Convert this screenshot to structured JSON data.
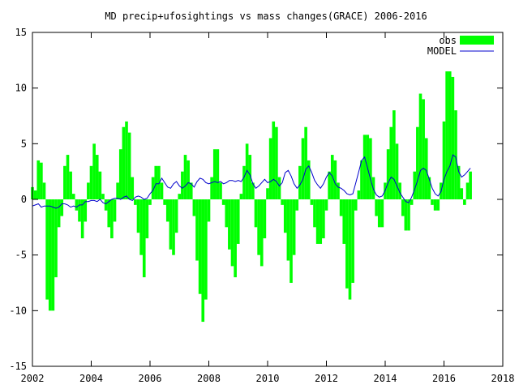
{
  "chart_data": {
    "type": "bar",
    "title": "MD precip+ufosightings vs mass changes(GRACE) 2006-2016",
    "xlabel": "",
    "ylabel": "",
    "xlim": [
      2002,
      2018
    ],
    "ylim": [
      -15,
      15
    ],
    "x_ticks": [
      "2002",
      "2004",
      "2006",
      "2008",
      "2010",
      "2012",
      "2014",
      "2016",
      "2018"
    ],
    "y_ticks": [
      "-15",
      "-10",
      "-5",
      "0",
      "5",
      "10",
      "15"
    ],
    "grid": false,
    "legend_position": "top-right",
    "x": [
      2002.0,
      2002.1,
      2002.2,
      2002.3,
      2002.4,
      2002.5,
      2002.6,
      2002.7,
      2002.8,
      2002.9,
      2003.0,
      2003.1,
      2003.2,
      2003.3,
      2003.4,
      2003.5,
      2003.6,
      2003.7,
      2003.8,
      2003.9,
      2004.0,
      2004.1,
      2004.2,
      2004.3,
      2004.4,
      2004.5,
      2004.6,
      2004.7,
      2004.8,
      2004.9,
      2005.0,
      2005.1,
      2005.2,
      2005.3,
      2005.4,
      2005.5,
      2005.6,
      2005.7,
      2005.8,
      2005.9,
      2006.0,
      2006.1,
      2006.2,
      2006.3,
      2006.4,
      2006.5,
      2006.6,
      2006.7,
      2006.8,
      2006.9,
      2007.0,
      2007.1,
      2007.2,
      2007.3,
      2007.4,
      2007.5,
      2007.6,
      2007.7,
      2007.8,
      2007.9,
      2008.0,
      2008.1,
      2008.2,
      2008.3,
      2008.4,
      2008.5,
      2008.6,
      2008.7,
      2008.8,
      2008.9,
      2009.0,
      2009.1,
      2009.2,
      2009.3,
      2009.4,
      2009.5,
      2009.6,
      2009.7,
      2009.8,
      2009.9,
      2010.0,
      2010.1,
      2010.2,
      2010.3,
      2010.4,
      2010.5,
      2010.6,
      2010.7,
      2010.8,
      2010.9,
      2011.0,
      2011.1,
      2011.2,
      2011.3,
      2011.4,
      2011.5,
      2011.6,
      2011.7,
      2011.8,
      2011.9,
      2012.0,
      2012.1,
      2012.2,
      2012.3,
      2012.4,
      2012.5,
      2012.6,
      2012.7,
      2012.8,
      2012.9,
      2013.0,
      2013.1,
      2013.2,
      2013.3,
      2013.4,
      2013.5,
      2013.6,
      2013.7,
      2013.8,
      2013.9,
      2014.0,
      2014.1,
      2014.2,
      2014.3,
      2014.4,
      2014.5,
      2014.6,
      2014.7,
      2014.8,
      2014.9,
      2015.0,
      2015.1,
      2015.2,
      2015.3,
      2015.4,
      2015.5,
      2015.6,
      2015.7,
      2015.8,
      2015.9,
      2016.0,
      2016.1,
      2016.2,
      2016.3,
      2016.4,
      2016.5,
      2016.6,
      2016.7,
      2016.8,
      2016.9
    ],
    "series": [
      {
        "name": "obs",
        "style": "boxes",
        "color": "#00ff00",
        "values": [
          1.1,
          0.8,
          3.5,
          3.3,
          1.5,
          -9.0,
          -10.0,
          -10.0,
          -7.0,
          -2.5,
          -1.5,
          3.0,
          4.0,
          2.5,
          0.5,
          -1.0,
          -2.0,
          -3.5,
          -2.0,
          1.5,
          3.0,
          5.0,
          4.0,
          2.5,
          0.5,
          -1.0,
          -2.5,
          -3.5,
          -2.0,
          1.5,
          4.5,
          6.5,
          7.0,
          6.0,
          2.0,
          -0.5,
          -3.0,
          -5.0,
          -7.0,
          -3.5,
          -0.5,
          2.0,
          3.0,
          3.0,
          1.5,
          -0.5,
          -2.0,
          -4.5,
          -5.0,
          -3.0,
          0.5,
          2.5,
          4.0,
          3.5,
          1.5,
          -1.5,
          -5.5,
          -8.5,
          -11.0,
          -9.0,
          -2.0,
          2.0,
          4.5,
          4.5,
          1.5,
          -0.5,
          -2.5,
          -4.5,
          -6.0,
          -7.0,
          -4.0,
          0.5,
          3.0,
          5.0,
          4.0,
          1.5,
          -2.5,
          -5.0,
          -6.0,
          -3.5,
          1.0,
          5.5,
          7.0,
          6.5,
          2.0,
          -0.5,
          -3.0,
          -5.5,
          -7.5,
          -5.0,
          -1.0,
          3.0,
          5.5,
          6.5,
          3.5,
          -0.5,
          -2.5,
          -4.0,
          -4.0,
          -3.5,
          -1.0,
          2.5,
          4.0,
          3.5,
          1.5,
          -1.5,
          -4.0,
          -8.0,
          -9.0,
          -7.5,
          -1.0,
          0.8,
          3.5,
          5.8,
          5.8,
          5.5,
          2.0,
          -1.5,
          -2.5,
          -2.5,
          1.5,
          4.5,
          6.5,
          8.0,
          5.0,
          1.5,
          -1.5,
          -2.8,
          -2.8,
          -0.5,
          2.5,
          6.5,
          9.5,
          9.0,
          5.5,
          2.0,
          -0.5,
          -1.0,
          -1.0,
          1.5,
          7.0,
          11.5,
          11.5,
          11.0,
          8.0,
          3.0,
          1.0,
          -0.5,
          1.5,
          2.5
        ]
      },
      {
        "name": "MODEL",
        "style": "line",
        "color": "#0000cc",
        "values": [
          -0.6,
          -0.5,
          -0.4,
          -0.7,
          -0.6,
          -0.6,
          -0.6,
          -0.7,
          -0.8,
          -0.7,
          -0.4,
          -0.4,
          -0.5,
          -0.7,
          -0.6,
          -0.7,
          -0.5,
          -0.5,
          -0.2,
          -0.2,
          -0.1,
          -0.1,
          -0.2,
          0.0,
          -0.3,
          -0.4,
          -0.2,
          0.0,
          0.1,
          0.1,
          0.0,
          0.2,
          0.3,
          0.0,
          -0.1,
          0.2,
          0.3,
          0.2,
          0.0,
          0.1,
          0.5,
          0.8,
          1.4,
          1.4,
          1.9,
          1.5,
          1.1,
          1.0,
          1.4,
          1.6,
          1.2,
          1.0,
          1.2,
          1.5,
          1.4,
          1.1,
          1.6,
          1.9,
          1.8,
          1.5,
          1.4,
          1.5,
          1.6,
          1.5,
          1.6,
          1.4,
          1.5,
          1.7,
          1.7,
          1.6,
          1.7,
          1.6,
          2.0,
          2.6,
          2.2,
          1.4,
          1.0,
          1.2,
          1.5,
          1.8,
          1.5,
          1.6,
          1.8,
          1.6,
          1.2,
          1.5,
          2.4,
          2.6,
          2.1,
          1.4,
          1.0,
          1.3,
          1.8,
          2.7,
          3.0,
          2.4,
          1.7,
          1.3,
          1.0,
          1.4,
          2.0,
          2.4,
          2.1,
          1.4,
          1.1,
          1.0,
          0.8,
          0.5,
          0.4,
          0.5,
          1.5,
          2.5,
          3.5,
          3.8,
          2.8,
          1.8,
          0.9,
          0.4,
          0.2,
          0.3,
          0.8,
          1.5,
          2.0,
          1.8,
          1.2,
          0.6,
          0.2,
          -0.2,
          -0.3,
          0.2,
          0.9,
          1.7,
          2.6,
          2.8,
          2.6,
          1.8,
          1.0,
          0.5,
          0.3,
          0.7,
          1.8,
          2.5,
          3.0,
          4.0,
          3.8,
          2.5,
          2.0,
          2.2,
          2.5,
          2.8
        ]
      }
    ]
  }
}
